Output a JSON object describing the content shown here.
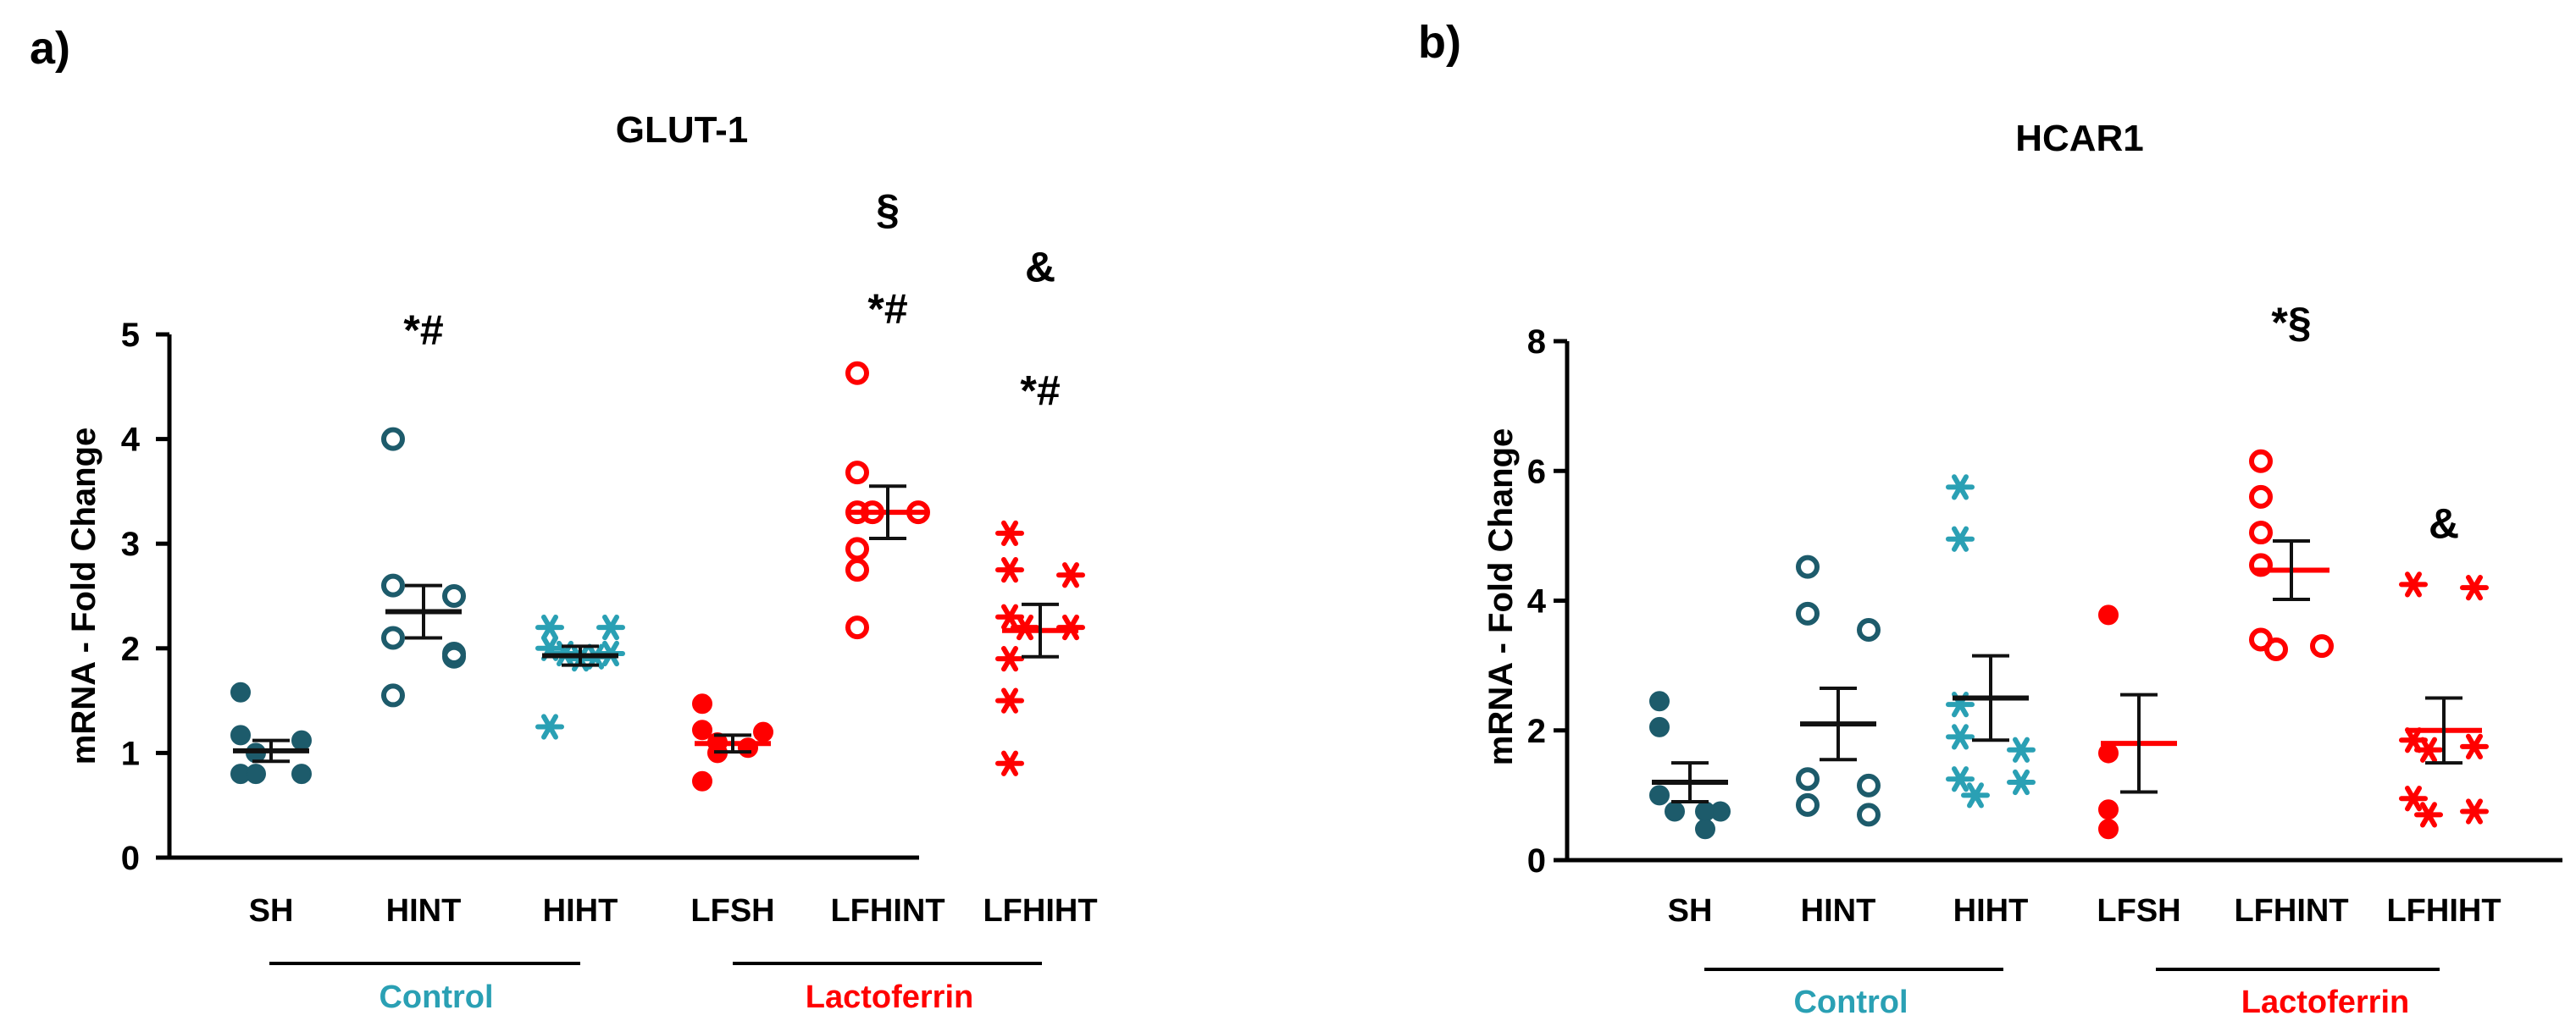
{
  "chart_data": [
    {
      "type": "scatter",
      "panel_label": "a)",
      "title": "GLUT-1",
      "ylabel": "mRNA - Fold Change",
      "xlabel": "",
      "ylim": [
        0,
        5
      ],
      "yticks": [
        0,
        1,
        2,
        3,
        4,
        5
      ],
      "grid": false,
      "categories": [
        "SH",
        "HINT",
        "HIHT",
        "LFSH",
        "LFHINT",
        "LFHIHT"
      ],
      "groups": [
        {
          "label": "Control",
          "categories": [
            "SH",
            "HINT",
            "HIHT"
          ],
          "color": "#2AA0B4"
        },
        {
          "label": "Lactoferrin",
          "categories": [
            "LFSH",
            "LFHINT",
            "LFHIHT"
          ],
          "color": "#FF0000"
        }
      ],
      "series": [
        {
          "category": "SH",
          "marker": "filled-circle",
          "color": "#1D5B6B",
          "mean": 1.02,
          "sem": 0.1,
          "points": [
            1.58,
            1.17,
            1.12,
            1.0,
            0.8,
            0.8,
            0.8
          ]
        },
        {
          "category": "HINT",
          "marker": "open-circle",
          "color": "#1D5B6B",
          "mean": 2.35,
          "sem": 0.25,
          "points": [
            4.0,
            2.6,
            2.5,
            2.1,
            1.95,
            1.92,
            1.55
          ]
        },
        {
          "category": "HIHT",
          "marker": "asterisk",
          "color": "#2AA0B4",
          "mean": 1.93,
          "sem": 0.09,
          "points": [
            2.2,
            2.2,
            2.0,
            1.95,
            1.95,
            1.92,
            1.9,
            1.25
          ]
        },
        {
          "category": "LFSH",
          "marker": "filled-circle",
          "color": "#FF0000",
          "mean": 1.09,
          "sem": 0.08,
          "points": [
            1.47,
            1.22,
            1.2,
            1.1,
            1.05,
            1.0,
            0.73
          ]
        },
        {
          "category": "LFHINT",
          "marker": "open-circle",
          "color": "#FF0000",
          "mean": 3.3,
          "sem": 0.25,
          "points": [
            4.63,
            3.68,
            3.3,
            3.3,
            3.3,
            2.95,
            2.75,
            2.2
          ]
        },
        {
          "category": "LFHIHT",
          "marker": "asterisk",
          "color": "#FF0000",
          "mean": 2.17,
          "sem": 0.25,
          "points": [
            3.1,
            2.75,
            2.7,
            2.3,
            2.2,
            2.2,
            1.9,
            1.5,
            0.9
          ]
        }
      ],
      "annotations": [
        {
          "category": "HINT",
          "text": "*#",
          "y": 5.05
        },
        {
          "category": "LFHINT",
          "text": "§",
          "y": 6.2
        },
        {
          "category": "LFHINT",
          "text": "*#",
          "y": 5.25
        },
        {
          "category": "LFHIHT",
          "text": "&",
          "y": 5.65
        },
        {
          "category": "LFHIHT",
          "text": "*#",
          "y": 4.47
        }
      ]
    },
    {
      "type": "scatter",
      "panel_label": "b)",
      "title": "HCAR1",
      "ylabel": "mRNA - Fold Change",
      "xlabel": "",
      "ylim": [
        0,
        8
      ],
      "yticks": [
        0,
        2,
        4,
        6,
        8
      ],
      "grid": false,
      "categories": [
        "SH",
        "HINT",
        "HIHT",
        "LFSH",
        "LFHINT",
        "LFHIHT"
      ],
      "groups": [
        {
          "label": "Control",
          "categories": [
            "SH",
            "HINT",
            "HIHT"
          ],
          "color": "#2AA0B4"
        },
        {
          "label": "Lactoferrin",
          "categories": [
            "LFSH",
            "LFHINT",
            "LFHIHT"
          ],
          "color": "#FF0000"
        }
      ],
      "series": [
        {
          "category": "SH",
          "marker": "filled-circle",
          "color": "#1D5B6B",
          "mean": 1.2,
          "sem": 0.3,
          "points": [
            2.45,
            2.05,
            1.0,
            0.75,
            0.75,
            0.75,
            0.48
          ]
        },
        {
          "category": "HINT",
          "marker": "open-circle",
          "color": "#1D5B6B",
          "mean": 2.1,
          "sem": 0.55,
          "points": [
            4.52,
            3.8,
            3.55,
            1.25,
            1.15,
            0.85,
            0.7
          ]
        },
        {
          "category": "HIHT",
          "marker": "asterisk",
          "color": "#2AA0B4",
          "mean": 2.5,
          "sem": 0.65,
          "points": [
            5.75,
            4.95,
            2.4,
            1.9,
            1.7,
            1.25,
            1.2,
            1.0
          ]
        },
        {
          "category": "LFSH",
          "marker": "filled-circle",
          "color": "#FF0000",
          "mean": 1.8,
          "sem": 0.75,
          "points": [
            3.78,
            1.65,
            0.78,
            0.48
          ]
        },
        {
          "category": "LFHINT",
          "marker": "open-circle",
          "color": "#FF0000",
          "mean": 4.47,
          "sem": 0.45,
          "points": [
            6.15,
            5.6,
            5.05,
            4.55,
            3.4,
            3.3,
            3.25
          ]
        },
        {
          "category": "LFHIHT",
          "marker": "asterisk",
          "color": "#FF0000",
          "mean": 2.0,
          "sem": 0.5,
          "points": [
            4.25,
            4.2,
            1.85,
            1.75,
            1.7,
            0.95,
            0.75,
            0.7
          ]
        }
      ],
      "annotations": [
        {
          "category": "LFHINT",
          "text": "*§",
          "y": 8.3
        },
        {
          "category": "LFHIHT",
          "text": "&",
          "y": 5.2
        }
      ]
    }
  ]
}
